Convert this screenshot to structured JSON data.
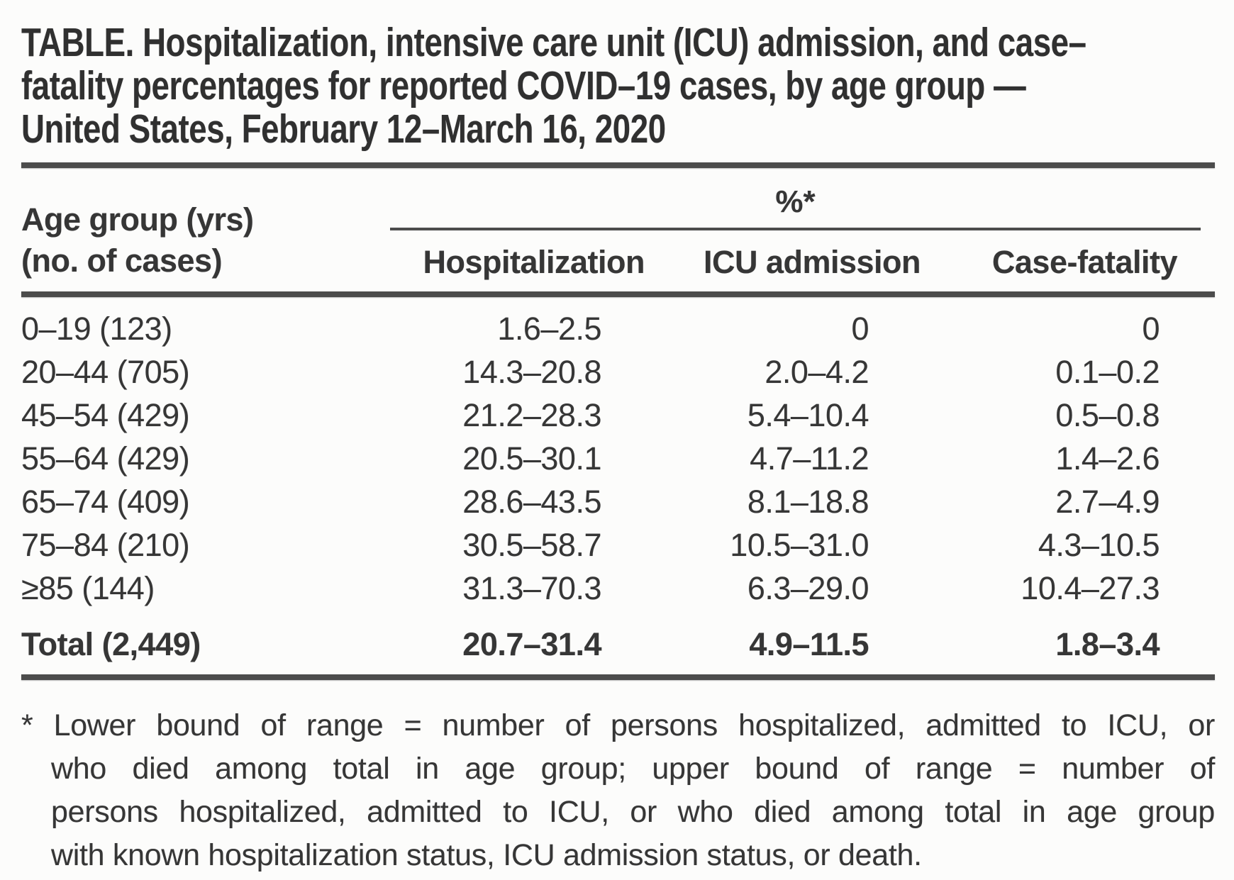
{
  "document": {
    "title_lines": [
      "TABLE. Hospitalization, intensive care unit (ICU) admission, and case–",
      "fatality percentages for reported COVID–19 cases, by age group —",
      "United States, February 12–March 16, 2020"
    ]
  },
  "table": {
    "row_header": {
      "line1": "Age group (yrs)",
      "line2": "(no. of cases)"
    },
    "percent_header": "%*",
    "columns": [
      "Hospitalization",
      "ICU admission",
      "Case-fatality"
    ],
    "rows": [
      {
        "age_group": "0–19 (123)",
        "hospitalization": "1.6–2.5",
        "icu_admission": "0",
        "case_fatality": "0"
      },
      {
        "age_group": "20–44 (705)",
        "hospitalization": "14.3–20.8",
        "icu_admission": "2.0–4.2",
        "case_fatality": "0.1–0.2"
      },
      {
        "age_group": "45–54 (429)",
        "hospitalization": "21.2–28.3",
        "icu_admission": "5.4–10.4",
        "case_fatality": "0.5–0.8"
      },
      {
        "age_group": "55–64 (429)",
        "hospitalization": "20.5–30.1",
        "icu_admission": "4.7–11.2",
        "case_fatality": "1.4–2.6"
      },
      {
        "age_group": "65–74 (409)",
        "hospitalization": "28.6–43.5",
        "icu_admission": "8.1–18.8",
        "case_fatality": "2.7–4.9"
      },
      {
        "age_group": "75–84 (210)",
        "hospitalization": "30.5–58.7",
        "icu_admission": "10.5–31.0",
        "case_fatality": "4.3–10.5"
      },
      {
        "age_group": "≥85 (144)",
        "hospitalization": "31.3–70.3",
        "icu_admission": "6.3–29.0",
        "case_fatality": "10.4–27.3"
      }
    ],
    "total": {
      "age_group": "Total (2,449)",
      "hospitalization": "20.7–31.4",
      "icu_admission": "4.9–11.5",
      "case_fatality": "1.8–3.4"
    }
  },
  "footnote": {
    "lines": [
      "* Lower bound of range = number of persons hospitalized, admitted to ICU, or",
      "who died among total in age group; upper bound of range = number of",
      "persons hospitalized, admitted to ICU, or who died among total in age group",
      "with known hospitalization status, ICU admission status, or death."
    ]
  },
  "colors": {
    "text": "#363636",
    "rule": "#4c4c4c",
    "background": "#fcfcfb"
  }
}
